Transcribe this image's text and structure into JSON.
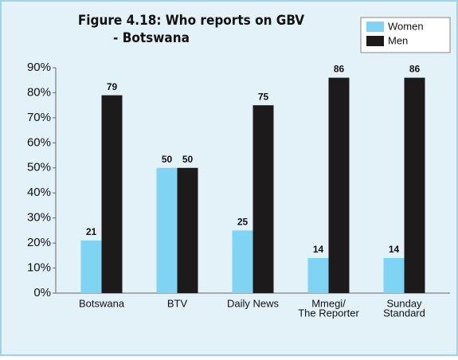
{
  "chart_data": {
    "type": "bar",
    "title": [
      "Figure 4.18: Who reports on GBV",
      "- Botswana"
    ],
    "categories": [
      [
        "Botswana"
      ],
      [
        "BTV"
      ],
      [
        "Daily News"
      ],
      [
        "Mmegi/",
        "The Reporter"
      ],
      [
        "Sunday",
        "Standard"
      ]
    ],
    "series": [
      {
        "name": "Women",
        "color": "#7fd4f4",
        "values": [
          21,
          50,
          25,
          14,
          14
        ]
      },
      {
        "name": "Men",
        "color": "#1c1a1b",
        "values": [
          79,
          50,
          75,
          86,
          86
        ]
      }
    ],
    "ylim": [
      0,
      90
    ],
    "yticks": [
      {
        "value": 0,
        "label": "0%"
      },
      {
        "value": 10,
        "label": "10%"
      },
      {
        "value": 20,
        "label": "20%"
      },
      {
        "value": 30,
        "label": "30%"
      },
      {
        "value": 40,
        "label": "40%"
      },
      {
        "value": 50,
        "label": "50%"
      },
      {
        "value": 60,
        "label": "60%"
      },
      {
        "value": 70,
        "label": "70%"
      },
      {
        "value": 80,
        "label": "80%"
      },
      {
        "value": 90,
        "label": "90%"
      }
    ],
    "grid": false,
    "legend": "top-right"
  }
}
